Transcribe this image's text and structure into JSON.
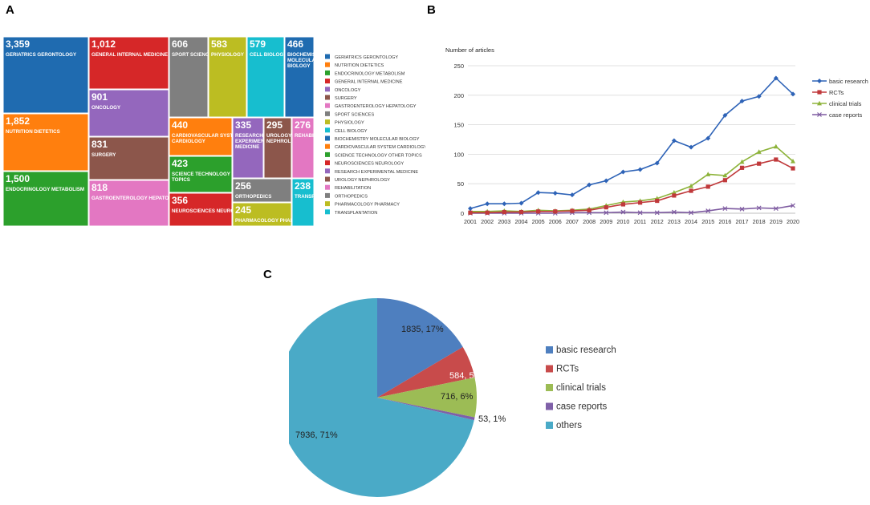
{
  "panels": {
    "a": "A",
    "b": "B",
    "c": "C"
  },
  "chart_data": [
    {
      "type": "treemap",
      "panel": "A",
      "tiles": [
        {
          "category": "GERIATRICS GERONTOLOGY",
          "value": 3359,
          "value_label": "3,359",
          "color": "#1f6bb0"
        },
        {
          "category": "NUTRITION DIETETICS",
          "value": 1852,
          "value_label": "1,852",
          "color": "#ff7f0e"
        },
        {
          "category": "ENDOCRINOLOGY METABOLISM",
          "value": 1500,
          "value_label": "1,500",
          "color": "#2ca02c"
        },
        {
          "category": "GENERAL INTERNAL MEDICINE",
          "value": 1012,
          "value_label": "1,012",
          "color": "#d62728"
        },
        {
          "category": "ONCOLOGY",
          "value": 901,
          "value_label": "901",
          "color": "#9467bd"
        },
        {
          "category": "SURGERY",
          "value": 831,
          "value_label": "831",
          "color": "#8c564b"
        },
        {
          "category": "GASTROENTEROLOGY HEPATOLOGY",
          "value": 818,
          "value_label": "818",
          "color": "#e377c2"
        },
        {
          "category": "SPORT SCIENCES",
          "value": 606,
          "value_label": "606",
          "color": "#7f7f7f"
        },
        {
          "category": "PHYSIOLOGY",
          "value": 583,
          "value_label": "583",
          "color": "#bcbd22"
        },
        {
          "category": "CELL BIOLOGY",
          "value": 579,
          "value_label": "579",
          "color": "#17becf"
        },
        {
          "category": "BIOCHEMISTRY MOLECULAR BIOLOGY",
          "value": 466,
          "value_label": "466",
          "color": "#1f6bb0"
        },
        {
          "category": "CARDIOVASCULAR SYSTEM CARDIOLOGY",
          "value": 440,
          "value_label": "440",
          "color": "#ff7f0e"
        },
        {
          "category": "SCIENCE TECHNOLOGY OTHER TOPICS",
          "value": 423,
          "value_label": "423",
          "color": "#2ca02c"
        },
        {
          "category": "NEUROSCIENCES NEUROLOGY",
          "value": 356,
          "value_label": "356",
          "color": "#d62728"
        },
        {
          "category": "RESEARCH EXPERIMENTAL MEDICINE",
          "value": 335,
          "value_label": "335",
          "color": "#9467bd"
        },
        {
          "category": "UROLOGY NEPHROLOGY",
          "value": 295,
          "value_label": "295",
          "color": "#8c564b"
        },
        {
          "category": "REHABILITATION",
          "value": 276,
          "value_label": "276",
          "color": "#e377c2"
        },
        {
          "category": "ORTHOPEDICS",
          "value": 256,
          "value_label": "256",
          "color": "#7f7f7f"
        },
        {
          "category": "PHARMACOLOGY PHARMACY",
          "value": 245,
          "value_label": "245",
          "color": "#bcbd22"
        },
        {
          "category": "TRANSPLANTATION",
          "value": 238,
          "value_label": "238",
          "color": "#17becf"
        }
      ],
      "tile_labels": {
        "GERIATRICS GERONTOLOGY": "GERIATRICS GERONTOLOGY",
        "NUTRITION DIETETICS": "NUTRITION DIETETICS",
        "ENDOCRINOLOGY METABOLISM": "ENDOCRINOLOGY METABOLISM",
        "GENERAL INTERNAL MEDICINE": "GENERAL INTERNAL MEDICINE",
        "ONCOLOGY": "ONCOLOGY",
        "SURGERY": "SURGERY",
        "GASTROENTEROLOGY HEPATOLOGY": "GASTROENTEROLOGY HEPATOLOGY",
        "SPORT SCIENCES": "SPORT SCIENCES",
        "PHYSIOLOGY": "PHYSIOLOGY",
        "CELL BIOLOGY": "CELL BIOLOGY",
        "BIOCHEMISTRY MOLECULAR BIOLOGY": "BIOCHEMISTRY MOLECULAR BIOLOGY",
        "CARDIOVASCULAR SYSTEM CARDIOLOGY": "CARDIOVASCULAR SYSTEM CARDIOLOGY",
        "SCIENCE TECHNOLOGY OTHER TOPICS": "SCIENCE TECHNOLOGY OTHER TOPICS",
        "NEUROSCIENCES NEUROLOGY": "NEUROSCIENCES NEUROLOGY",
        "RESEARCH EXPERIMENTAL MEDICINE": "RESEARCH EXPERIMENTAL MEDICINE",
        "UROLOGY NEPHROLOGY": "UROLOGY NEPHROLOGY",
        "REHABILITATION": "REHABILITATION",
        "ORTHOPEDICS": "ORTHOPEDICS",
        "PHARMACOLOGY PHARMACY": "PHARMACOLOGY PHARMACY",
        "TRANSPLANTATION": "TRANSPLANTATION"
      },
      "legend": [
        "GERIATRICS GERONTOLOGY",
        "NUTRITION DIETETICS",
        "ENDOCRINOLOGY METABOLISM",
        "GENERAL INTERNAL MEDICINE",
        "ONCOLOGY",
        "SURGERY",
        "GASTROENTEROLOGY HEPATOLOGY",
        "SPORT SCIENCES",
        "PHYSIOLOGY",
        "CELL BIOLOGY",
        "BIOCHEMISTRY MOLECULAR BIOLOGY",
        "CARDIOVASCULAR SYSTEM CARDIOLOGY",
        "SCIENCE TECHNOLOGY OTHER TOPICS",
        "NEUROSCIENCES NEUROLOGY",
        "RESEARCH EXPERIMENTAL MEDICINE",
        "UROLOGY NEPHROLOGY",
        "REHABILITATION",
        "ORTHOPEDICS",
        "PHARMACOLOGY PHARMACY",
        "TRANSPLANTATION"
      ],
      "legend_display": [
        "GERIATRICS  GERONTOLOGY",
        "NUTRITION  DIETETICS",
        "ENDOCRINOLOGY  METABOLISM",
        "GENERAL  INTERNAL  MEDICINE",
        "ONCOLOGY",
        "SURGERY",
        "GASTROENTEROLOGY  HEPATOLOGY",
        "SPORT  SCIENCES",
        "PHYSIOLOGY",
        "CELL  BIOLOGY",
        "BIOCHEMISTRY  MOLECULAR  BIOLOGY",
        "CARDIOVASCULAR  SYSTEM  CARDIOLOGY",
        "SCIENCE  TECHNOLOGY  OTHER  TOPICS",
        "NEUROSCIENCES  NEUROLOGY",
        "RESEARCH  EXPERIMENTAL  MEDICINE",
        "UROLOGY  NEPHROLOGY",
        "REHABILITATION",
        "ORTHOPEDICS",
        "PHARMACOLOGY  PHARMACY",
        "TRANSPLANTATION"
      ],
      "legend_position": "right"
    },
    {
      "type": "line",
      "panel": "B",
      "title": "Number of articles",
      "x": [
        2001,
        2002,
        2003,
        2004,
        2005,
        2006,
        2007,
        2008,
        2009,
        2010,
        2011,
        2012,
        2013,
        2014,
        2015,
        2016,
        2017,
        2018,
        2019,
        2020
      ],
      "ylim": [
        0,
        250
      ],
      "yticks": [
        0,
        50,
        100,
        150,
        200,
        250
      ],
      "series": [
        {
          "name": "basic research",
          "color": "#2e63b7",
          "marker": "diamond",
          "values": [
            8,
            16,
            16,
            17,
            35,
            34,
            31,
            48,
            55,
            70,
            74,
            85,
            123,
            112,
            127,
            166,
            190,
            198,
            229,
            202
          ]
        },
        {
          "name": "RCTs",
          "color": "#c0393b",
          "marker": "square",
          "values": [
            1,
            1,
            2,
            2,
            3,
            3,
            4,
            5,
            10,
            15,
            18,
            21,
            30,
            38,
            45,
            56,
            77,
            84,
            91,
            76
          ]
        },
        {
          "name": "clinical trials",
          "color": "#8db33a",
          "marker": "triangle",
          "values": [
            3,
            3,
            4,
            3,
            5,
            4,
            5,
            7,
            13,
            19,
            21,
            25,
            35,
            46,
            66,
            64,
            87,
            104,
            113,
            88
          ]
        },
        {
          "name": "case reports",
          "color": "#7d5aa0",
          "marker": "x",
          "values": [
            0,
            0,
            0,
            0,
            0,
            0,
            1,
            1,
            1,
            2,
            1,
            1,
            2,
            1,
            4,
            8,
            7,
            9,
            8,
            13
          ]
        }
      ],
      "legend_position": "right"
    },
    {
      "type": "pie",
      "panel": "C",
      "slices": [
        {
          "name": "basic research",
          "value": 1835,
          "percent": 17,
          "label": "1835, 17%",
          "color": "#4e7fbf"
        },
        {
          "name": "RCTs",
          "value": 584,
          "percent": 5,
          "label": "584, 5%",
          "color": "#c84b4b"
        },
        {
          "name": "clinical trials",
          "value": 716,
          "percent": 6,
          "label": "716, 6%",
          "color": "#9cbc55"
        },
        {
          "name": "case reports",
          "value": 53,
          "percent": 1,
          "label": "53, 1%",
          "color": "#7f60a8"
        },
        {
          "name": "others",
          "value": 7936,
          "percent": 71,
          "label": "7936, 71%",
          "color": "#4aaac7"
        }
      ],
      "legend_position": "right"
    }
  ]
}
